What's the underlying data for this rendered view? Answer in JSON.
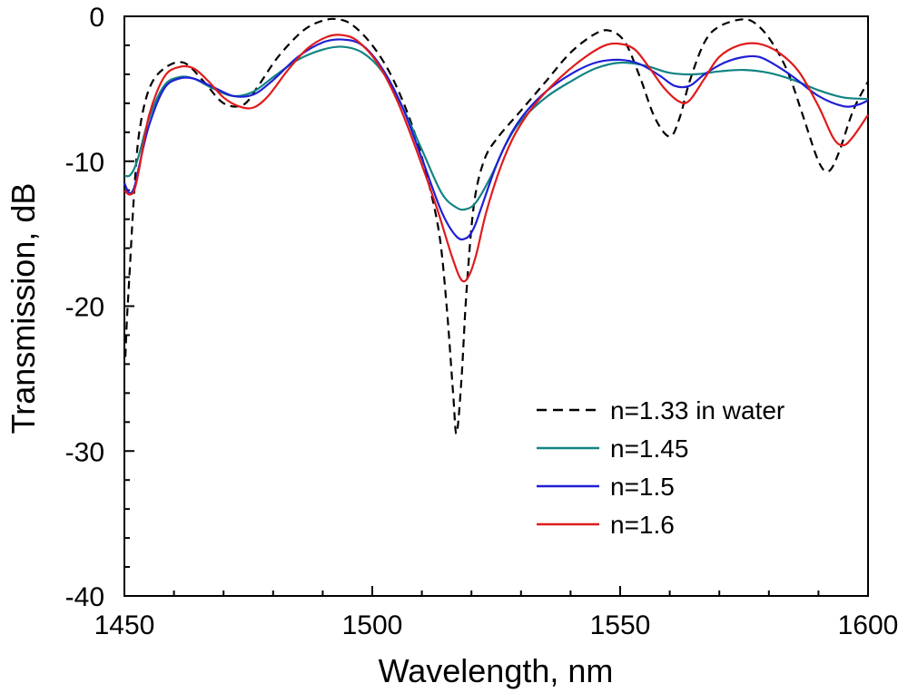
{
  "chart_data": {
    "type": "line",
    "xlabel": "Wavelength, nm",
    "ylabel": "Transmission, dB",
    "xlim": [
      1450,
      1600
    ],
    "ylim": [
      -40,
      0
    ],
    "xticks": [
      1450,
      1500,
      1550,
      1600
    ],
    "yticks": [
      -40,
      -30,
      -20,
      -10,
      0
    ],
    "xtick_labels": [
      "1450",
      "1500",
      "1550",
      "1600"
    ],
    "ytick_labels": [
      "-40",
      "-30",
      "-20",
      "-10",
      "0"
    ],
    "grid": false,
    "legend_position": "bottom-right",
    "series": [
      {
        "name": "n=1.33 in water",
        "color": "#000000",
        "dash": "dashed",
        "x": [
          1450.2,
          1450.5,
          1451,
          1452,
          1453,
          1455,
          1458,
          1462,
          1466,
          1470,
          1474,
          1477,
          1481,
          1486,
          1490,
          1493,
          1496,
          1500,
          1504,
          1508,
          1511,
          1513.5,
          1515,
          1516.3,
          1517,
          1518,
          1519,
          1520.5,
          1522.5,
          1525,
          1530,
          1535,
          1540,
          1545,
          1548,
          1551,
          1554,
          1557,
          1560,
          1562,
          1564,
          1567,
          1570,
          1575,
          1578,
          1581,
          1584,
          1587,
          1590,
          1592,
          1594,
          1597,
          1600
        ],
        "y": [
          -23.5,
          -21,
          -18,
          -12,
          -8,
          -5,
          -3.6,
          -3.2,
          -4.5,
          -6,
          -6.1,
          -4.8,
          -2.8,
          -1.0,
          -0.3,
          -0.2,
          -0.6,
          -2.0,
          -4.2,
          -7.5,
          -11,
          -15,
          -20,
          -26,
          -28.8,
          -25,
          -19,
          -13,
          -10,
          -8.5,
          -6.5,
          -4.5,
          -2.5,
          -1.2,
          -1.0,
          -1.8,
          -4.2,
          -7.0,
          -8.3,
          -7.0,
          -4.5,
          -1.8,
          -0.7,
          -0.2,
          -0.7,
          -2.0,
          -4.0,
          -7.0,
          -10.0,
          -10.7,
          -9.5,
          -6.5,
          -4.5
        ]
      },
      {
        "name": "n=1.45",
        "color": "#128383",
        "dash": "solid",
        "x": [
          1450,
          1451,
          1452,
          1453,
          1455,
          1458,
          1461,
          1464,
          1468,
          1472,
          1476,
          1480,
          1485,
          1490,
          1494,
          1498,
          1502,
          1506,
          1510,
          1514,
          1517,
          1519,
          1521,
          1524,
          1527,
          1530,
          1535,
          1540,
          1545,
          1550,
          1555,
          1560,
          1565,
          1570,
          1575,
          1580,
          1585,
          1590,
          1595,
          1600
        ],
        "y": [
          -11.0,
          -11.0,
          -10.5,
          -9.5,
          -7.0,
          -4.8,
          -4.2,
          -4.3,
          -5.0,
          -5.5,
          -5.2,
          -4.2,
          -3.0,
          -2.3,
          -2.1,
          -2.5,
          -3.8,
          -6.2,
          -9.2,
          -12.2,
          -13.2,
          -13.3,
          -12.8,
          -11.0,
          -8.8,
          -7.2,
          -5.6,
          -4.5,
          -3.6,
          -3.2,
          -3.4,
          -3.9,
          -4.0,
          -3.8,
          -3.7,
          -3.9,
          -4.4,
          -5.1,
          -5.6,
          -5.7
        ]
      },
      {
        "name": "n=1.5",
        "color": "#1f1fd6",
        "dash": "solid",
        "x": [
          1450,
          1451,
          1452,
          1453,
          1455,
          1458,
          1461,
          1464,
          1468,
          1472,
          1476,
          1480,
          1485,
          1490,
          1494,
          1498,
          1502,
          1506,
          1510,
          1514,
          1517,
          1519,
          1520.5,
          1522,
          1525,
          1528,
          1531,
          1535,
          1540,
          1545,
          1550,
          1554,
          1558,
          1561,
          1564,
          1567,
          1571,
          1575,
          1578,
          1581,
          1585,
          1590,
          1595,
          1598,
          1600
        ],
        "y": [
          -11.5,
          -12.2,
          -11.8,
          -10.3,
          -7.5,
          -5.0,
          -4.3,
          -4.3,
          -4.9,
          -5.5,
          -5.4,
          -4.4,
          -2.8,
          -1.8,
          -1.6,
          -2.0,
          -3.6,
          -6.2,
          -9.8,
          -13.5,
          -15.2,
          -15.3,
          -14.6,
          -13.2,
          -10.3,
          -8.1,
          -6.6,
          -5.2,
          -4.0,
          -3.2,
          -3.0,
          -3.3,
          -4.1,
          -4.8,
          -4.8,
          -4.0,
          -3.2,
          -2.8,
          -2.8,
          -3.3,
          -4.2,
          -5.5,
          -6.2,
          -6.1,
          -5.8
        ]
      },
      {
        "name": "n=1.6",
        "color": "#e01b1b",
        "dash": "solid",
        "x": [
          1450,
          1451,
          1452,
          1453,
          1455,
          1458,
          1461,
          1464,
          1467,
          1470,
          1473,
          1476,
          1479,
          1483,
          1487,
          1491,
          1494,
          1497,
          1501,
          1505,
          1509,
          1513,
          1516,
          1518,
          1519.5,
          1521,
          1523,
          1526,
          1529,
          1533,
          1538,
          1543,
          1547,
          1550,
          1553,
          1556,
          1559,
          1562,
          1564,
          1567,
          1570,
          1574,
          1578,
          1582,
          1586,
          1590,
          1593,
          1595,
          1597,
          1600
        ],
        "y": [
          -12.0,
          -12.3,
          -12.0,
          -10.5,
          -6.8,
          -4.2,
          -3.5,
          -3.6,
          -4.5,
          -5.6,
          -6.2,
          -6.3,
          -5.5,
          -3.7,
          -2.2,
          -1.4,
          -1.3,
          -1.7,
          -3.2,
          -5.8,
          -9.3,
          -13.2,
          -16.5,
          -18.2,
          -17.9,
          -16.4,
          -13.5,
          -10.3,
          -8.0,
          -6.0,
          -4.2,
          -2.8,
          -2.0,
          -1.9,
          -2.3,
          -3.6,
          -5.0,
          -5.9,
          -5.8,
          -4.3,
          -2.8,
          -2.0,
          -1.9,
          -2.5,
          -3.8,
          -6.2,
          -8.4,
          -8.9,
          -8.3,
          -6.8
        ]
      }
    ]
  }
}
